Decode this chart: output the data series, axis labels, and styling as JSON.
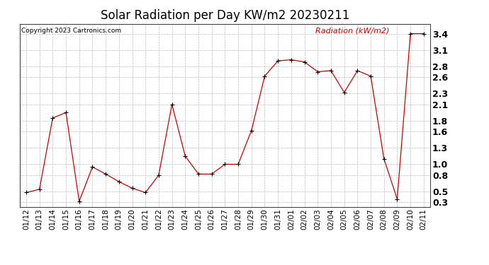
{
  "title": "Solar Radiation per Day KW/m2 20230211",
  "copyright": "Copyright 2023 Cartronics.com",
  "legend_label": "Radiation (kW/m2)",
  "dates": [
    "01/12",
    "01/13",
    "01/14",
    "01/15",
    "01/16",
    "01/17",
    "01/18",
    "01/19",
    "01/20",
    "01/21",
    "01/22",
    "01/23",
    "01/24",
    "01/25",
    "01/26",
    "01/27",
    "01/28",
    "01/29",
    "01/30",
    "01/31",
    "02/01",
    "02/02",
    "02/03",
    "02/04",
    "02/05",
    "02/06",
    "02/07",
    "02/08",
    "02/09",
    "02/10",
    "02/11"
  ],
  "values": [
    0.48,
    0.54,
    1.85,
    1.95,
    0.32,
    0.95,
    0.82,
    0.68,
    0.56,
    0.48,
    0.8,
    2.1,
    1.15,
    0.82,
    0.82,
    1.0,
    1.0,
    1.62,
    2.62,
    2.9,
    2.92,
    2.88,
    2.7,
    2.72,
    2.32,
    2.72,
    2.62,
    1.1,
    0.36,
    3.4,
    3.4
  ],
  "line_color": "#cc0000",
  "marker_color": "#000000",
  "bg_color": "#ffffff",
  "grid_color": "#bbbbbb",
  "yticks": [
    0.3,
    0.5,
    0.8,
    1.0,
    1.3,
    1.6,
    1.8,
    2.1,
    2.3,
    2.6,
    2.8,
    3.1,
    3.4
  ],
  "ylim": [
    0.22,
    3.58
  ],
  "title_fontsize": 12,
  "tick_fontsize": 7.5,
  "legend_color": "#cc0000",
  "fig_width": 6.9,
  "fig_height": 3.75,
  "dpi": 100
}
